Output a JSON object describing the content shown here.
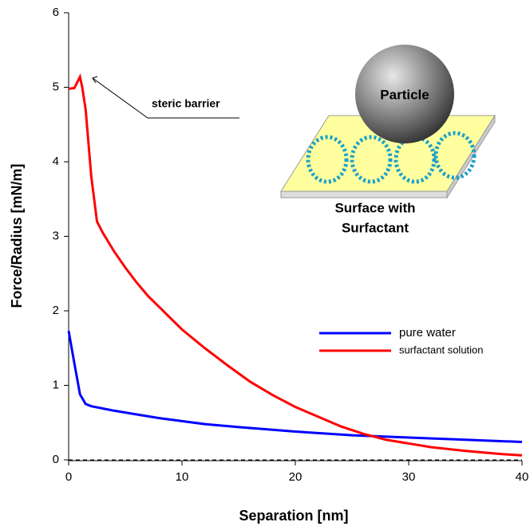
{
  "chart_data": {
    "type": "line",
    "x_label": "Separation [nm]",
    "y_label": "Force/Radius [mN/m]",
    "xlim": [
      0,
      40
    ],
    "xticks": [
      0,
      10,
      20,
      30,
      40
    ],
    "ylim": [
      0,
      6
    ],
    "yticks": [
      0,
      1,
      2,
      3,
      4,
      5,
      6
    ],
    "hline": 0,
    "legend": "center right",
    "annotations": [
      "steric barrier"
    ],
    "inset_labels": [
      "Particle",
      "Surface with",
      "Surfactant"
    ],
    "series": [
      {
        "name": "pure water",
        "color": "#0000ff",
        "x": [
          0,
          0.5,
          1,
          1.5,
          2,
          3,
          4,
          6,
          8,
          10,
          12,
          15,
          20,
          25,
          30,
          35,
          40
        ],
        "values": [
          1.73,
          1.3,
          0.88,
          0.75,
          0.72,
          0.69,
          0.66,
          0.61,
          0.56,
          0.52,
          0.48,
          0.44,
          0.38,
          0.33,
          0.3,
          0.27,
          0.24
        ]
      },
      {
        "name": "surfactant solution",
        "color": "#ff0000",
        "x": [
          0,
          0.5,
          0.8,
          1,
          1.2,
          1.5,
          2,
          2.5,
          3,
          4,
          5,
          6,
          7,
          8,
          10,
          12,
          14,
          16,
          18,
          20,
          22,
          24,
          26,
          28,
          30,
          32,
          35,
          38,
          40
        ],
        "values": [
          4.98,
          4.99,
          5.08,
          5.14,
          5.0,
          4.7,
          3.8,
          3.2,
          3.05,
          2.8,
          2.58,
          2.38,
          2.2,
          2.05,
          1.75,
          1.5,
          1.27,
          1.05,
          0.87,
          0.71,
          0.58,
          0.45,
          0.35,
          0.27,
          0.22,
          0.17,
          0.12,
          0.08,
          0.06
        ]
      }
    ]
  }
}
